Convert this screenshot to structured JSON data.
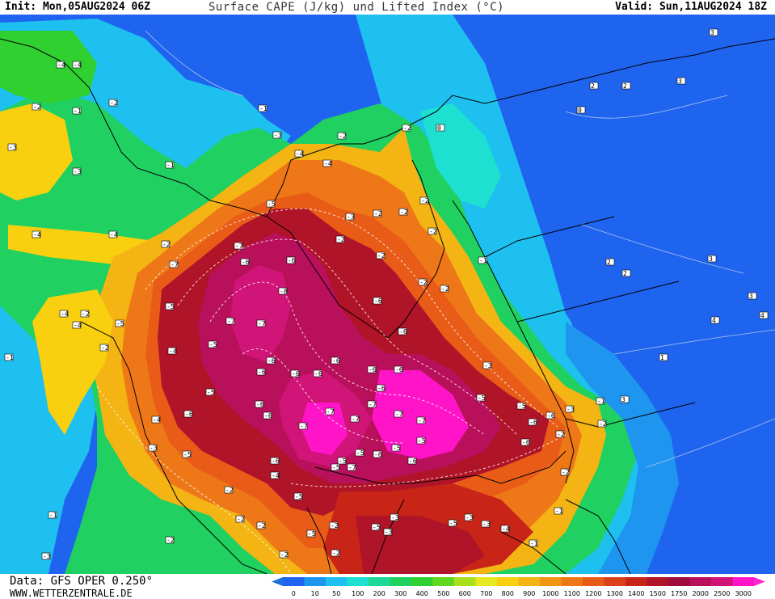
{
  "header": {
    "init": "Init: Mon,05AUG2024 06Z",
    "title": "Surface CAPE (J/kg) und Lifted Index (°C)",
    "valid": "Valid: Sun,11AUG2024 18Z"
  },
  "footer": {
    "source": "Data: GFS OPER 0.250°",
    "site": "WWW.WETTERZENTRALE.DE"
  },
  "legend": {
    "levels": [
      "0",
      "10",
      "50",
      "100",
      "200",
      "300",
      "400",
      "500",
      "600",
      "700",
      "800",
      "900",
      "1000",
      "1100",
      "1200",
      "1300",
      "1400",
      "1500",
      "1750",
      "2000",
      "2500",
      "3000"
    ],
    "colors": [
      "#1f64ef",
      "#1e96f0",
      "#1ec0f0",
      "#1ee0d0",
      "#1ed89a",
      "#20d060",
      "#30d030",
      "#60d820",
      "#a8e020",
      "#e8e820",
      "#f8d010",
      "#f4b414",
      "#f29414",
      "#ee7818",
      "#e85c18",
      "#dc4018",
      "#c82418",
      "#b01428",
      "#a00c3c",
      "#b8105a",
      "#d01478",
      "#ff14c8"
    ],
    "below_color": "#1e6fdc",
    "above_color": "#ff28d0"
  },
  "map": {
    "li_labels": [
      "-1",
      "-2",
      "-3",
      "-4",
      "-5",
      "-6",
      "-7",
      "0",
      "1",
      "2",
      "3"
    ]
  }
}
